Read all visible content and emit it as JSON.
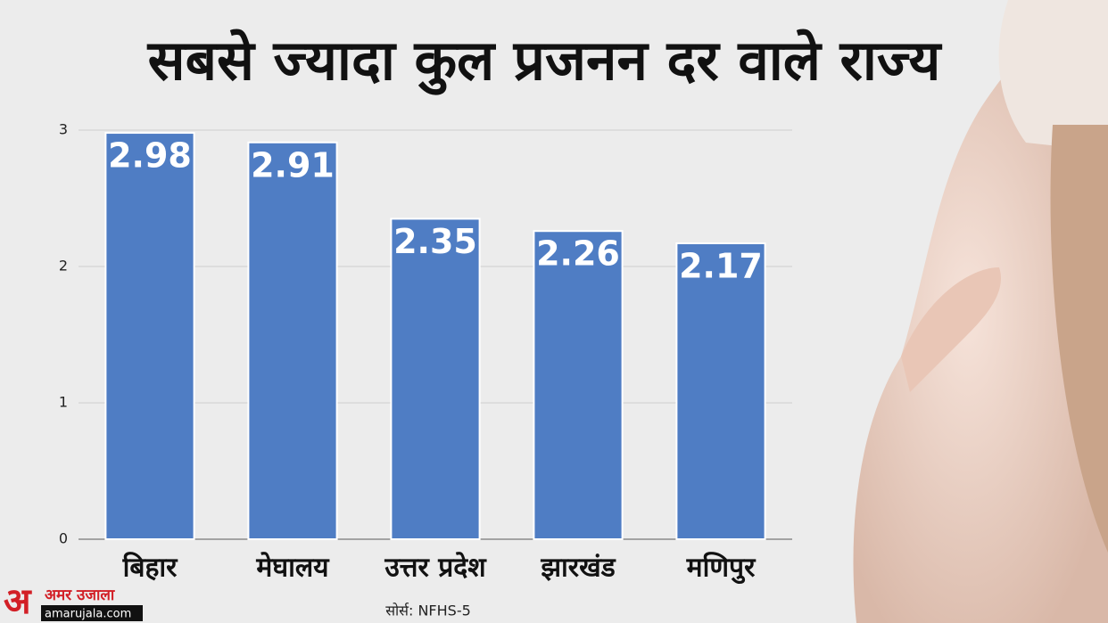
{
  "chart_data": {
    "type": "bar",
    "title": "सबसे ज्यादा कुल प्रजनन दर वाले राज्य",
    "categories": [
      "बिहार",
      "मेघालय",
      "उत्तर प्रदेश",
      "झारखंड",
      "मणिपुर"
    ],
    "values": [
      2.98,
      2.91,
      2.35,
      2.26,
      2.17
    ],
    "color": "#4f7dc4",
    "ylim": [
      0,
      3
    ],
    "yticks": [
      0,
      1,
      2,
      3
    ],
    "grid": true,
    "data_labels": true,
    "source": "सोर्स: NFHS-5"
  },
  "branding": {
    "name": "अमर उजाला",
    "site": "amarujala.com"
  }
}
